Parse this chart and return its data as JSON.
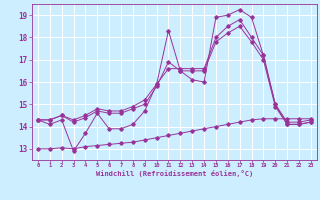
{
  "xlabel": "Windchill (Refroidissement éolien,°C)",
  "bg_color": "#cceeff",
  "grid_color": "#ffffff",
  "line_color": "#993399",
  "x_ticks": [
    0,
    1,
    2,
    3,
    4,
    5,
    6,
    7,
    8,
    9,
    10,
    11,
    12,
    13,
    14,
    15,
    16,
    17,
    18,
    19,
    20,
    21,
    22,
    23
  ],
  "y_ticks": [
    13,
    14,
    15,
    16,
    17,
    18,
    19
  ],
  "ylim": [
    12.5,
    19.5
  ],
  "xlim": [
    -0.5,
    23.5
  ],
  "line1_x": [
    0,
    1,
    2,
    3,
    4,
    5,
    6,
    7,
    8,
    9,
    10,
    11,
    12,
    13,
    14,
    15,
    16,
    17,
    18,
    19,
    20,
    21,
    22,
    23
  ],
  "line1_y": [
    14.3,
    14.1,
    14.3,
    12.9,
    13.7,
    14.6,
    13.9,
    13.9,
    14.1,
    14.7,
    15.9,
    18.3,
    16.5,
    16.1,
    16.0,
    18.9,
    19.0,
    19.25,
    18.9,
    17.2,
    15.0,
    14.1,
    14.1,
    14.2
  ],
  "line2_x": [
    0,
    1,
    2,
    3,
    4,
    5,
    6,
    7,
    8,
    9,
    10,
    11,
    12,
    13,
    14,
    15,
    16,
    17,
    18,
    19,
    20,
    21,
    22,
    23
  ],
  "line2_y": [
    14.3,
    14.3,
    14.5,
    14.3,
    14.5,
    14.8,
    14.7,
    14.7,
    14.9,
    15.2,
    15.9,
    16.6,
    16.6,
    16.6,
    16.6,
    18.0,
    18.5,
    18.8,
    18.0,
    17.2,
    15.0,
    14.2,
    14.2,
    14.3
  ],
  "line3_x": [
    0,
    1,
    2,
    3,
    4,
    5,
    6,
    7,
    8,
    9,
    10,
    11,
    12,
    13,
    14,
    15,
    16,
    17,
    18,
    19,
    20,
    21,
    22,
    23
  ],
  "line3_y": [
    14.3,
    14.3,
    14.5,
    14.2,
    14.4,
    14.7,
    14.6,
    14.6,
    14.8,
    15.0,
    15.8,
    16.9,
    16.5,
    16.5,
    16.5,
    17.8,
    18.2,
    18.5,
    17.8,
    17.0,
    14.9,
    14.1,
    14.1,
    14.2
  ],
  "line4_x": [
    0,
    1,
    2,
    3,
    4,
    5,
    6,
    7,
    8,
    9,
    10,
    11,
    12,
    13,
    14,
    15,
    16,
    17,
    18,
    19,
    20,
    21,
    22,
    23
  ],
  "line4_y": [
    13.0,
    13.0,
    13.05,
    13.0,
    13.1,
    13.15,
    13.2,
    13.25,
    13.3,
    13.4,
    13.5,
    13.6,
    13.7,
    13.8,
    13.9,
    14.0,
    14.1,
    14.2,
    14.3,
    14.35,
    14.35,
    14.35,
    14.35,
    14.35
  ]
}
